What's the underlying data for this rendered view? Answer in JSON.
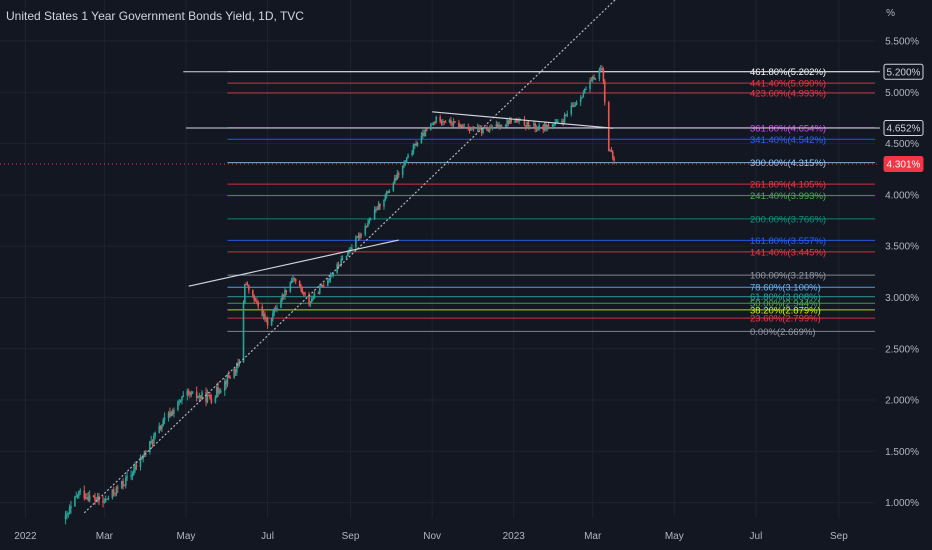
{
  "title": "United States 1 Year Government Bonds Yield, 1D, TVC",
  "colors": {
    "background": "#131722",
    "up": "#26a69a",
    "down": "#ef5350",
    "grid": "#1f2330",
    "axis_text": "#b2b5be"
  },
  "chart_data": {
    "type": "candlestick",
    "title": "United States 1 Year Government Bonds Yield, 1D, TVC",
    "y_unit_label": "%",
    "ylim": [
      0.85,
      5.9
    ],
    "y_ticks": [
      {
        "value": 1.0,
        "label": "1.000%"
      },
      {
        "value": 1.5,
        "label": "1.500%"
      },
      {
        "value": 2.0,
        "label": "2.000%"
      },
      {
        "value": 2.5,
        "label": "2.500%"
      },
      {
        "value": 3.0,
        "label": "3.000%"
      },
      {
        "value": 3.5,
        "label": "3.500%"
      },
      {
        "value": 4.0,
        "label": "4.000%"
      },
      {
        "value": 4.5,
        "label": "4.500%"
      },
      {
        "value": 5.0,
        "label": "5.000%"
      },
      {
        "value": 5.5,
        "label": "5.500%"
      }
    ],
    "x_ticks": [
      {
        "date": "2022-01-01",
        "label": "2022"
      },
      {
        "date": "2022-03-01",
        "label": "Mar"
      },
      {
        "date": "2022-05-01",
        "label": "May"
      },
      {
        "date": "2022-07-01",
        "label": "Jul"
      },
      {
        "date": "2022-09-01",
        "label": "Sep"
      },
      {
        "date": "2022-11-01",
        "label": "Nov"
      },
      {
        "date": "2023-01-01",
        "label": "2023"
      },
      {
        "date": "2023-03-01",
        "label": "Mar"
      },
      {
        "date": "2023-05-01",
        "label": "May"
      },
      {
        "date": "2023-07-01",
        "label": "Jul"
      },
      {
        "date": "2023-09-01",
        "label": "Sep"
      }
    ],
    "x_range": [
      "2021-12-13",
      "2023-09-28"
    ],
    "price_path": [
      [
        "2022-01-31",
        0.84
      ],
      [
        "2022-02-10",
        1.1
      ],
      [
        "2022-02-28",
        1.0
      ],
      [
        "2022-03-20",
        1.25
      ],
      [
        "2022-04-15",
        1.8
      ],
      [
        "2022-05-01",
        2.05
      ],
      [
        "2022-05-20",
        2.02
      ],
      [
        "2022-06-10",
        2.35
      ],
      [
        "2022-06-14",
        3.15
      ],
      [
        "2022-06-20",
        3.0
      ],
      [
        "2022-07-01",
        2.75
      ],
      [
        "2022-07-20",
        3.2
      ],
      [
        "2022-08-01",
        2.95
      ],
      [
        "2022-08-25",
        3.35
      ],
      [
        "2022-09-15",
        3.75
      ],
      [
        "2022-09-30",
        4.05
      ],
      [
        "2022-10-20",
        4.5
      ],
      [
        "2022-11-05",
        4.75
      ],
      [
        "2022-11-20",
        4.68
      ],
      [
        "2022-12-10",
        4.62
      ],
      [
        "2022-12-31",
        4.73
      ],
      [
        "2023-01-20",
        4.65
      ],
      [
        "2023-02-05",
        4.7
      ],
      [
        "2023-02-25",
        5.05
      ],
      [
        "2023-03-08",
        5.25
      ],
      [
        "2023-03-13",
        4.45
      ],
      [
        "2023-03-18",
        4.3
      ]
    ],
    "fib_levels": [
      {
        "label": "461.80%(5.202%)",
        "value": 5.202,
        "color": "#ffffff"
      },
      {
        "label": "441.40%(5.090%)",
        "value": 5.09,
        "color": "#f23645"
      },
      {
        "label": "423.60%(4.993%)",
        "value": 4.993,
        "color": "#f23645"
      },
      {
        "label": "361.80%(4.654%)",
        "value": 4.654,
        "color": "#e040fb"
      },
      {
        "label": "341.40%(4.542%)",
        "value": 4.542,
        "color": "#2962ff"
      },
      {
        "label": "300.00%(4.315%)",
        "value": 4.315,
        "color": "#90caf9"
      },
      {
        "label": "261.80%(4.105%)",
        "value": 4.105,
        "color": "#f23645"
      },
      {
        "label": "241.40%(3.993%)",
        "value": 3.993,
        "color": "#4caf50"
      },
      {
        "label": "200.00%(3.766%)",
        "value": 3.766,
        "color": "#089981"
      },
      {
        "label": "161.80%(3.557%)",
        "value": 3.557,
        "color": "#2962ff"
      },
      {
        "label": "141.40%(3.445%)",
        "value": 3.445,
        "color": "#f23645"
      },
      {
        "label": "100.00%(3.218%)",
        "value": 3.218,
        "color": "#9598a1"
      },
      {
        "label": "78.60%(3.100%)",
        "value": 3.1,
        "color": "#64b5f6"
      },
      {
        "label": "61.80%(3.008%)",
        "value": 3.008,
        "color": "#26a69a"
      },
      {
        "label": "50.00%(2.944%)",
        "value": 2.944,
        "color": "#4caf50"
      },
      {
        "label": "38.20%(2.879%)",
        "value": 2.879,
        "color": "#c6ff00"
      },
      {
        "label": "23.60%(2.799%)",
        "value": 2.799,
        "color": "#f23645"
      },
      {
        "label": "0.00%(2.669%)",
        "value": 2.669,
        "color": "#9598a1"
      }
    ],
    "fib_range": [
      "2022-06-01",
      "2022-10-29"
    ],
    "horizontal_lines": [
      {
        "value": 5.2,
        "from": "2022-04-29",
        "color": "#d1d4dc"
      },
      {
        "value": 4.652,
        "from": "2022-05-01",
        "color": "#d1d4dc"
      }
    ],
    "trend_lines": [
      {
        "x1": "2022-02-14",
        "y1": 0.9,
        "x2": "2023-03-24",
        "y2": 5.98,
        "dashed": true,
        "color": "#b2b5be"
      },
      {
        "x1": "2022-05-03",
        "y1": 3.11,
        "x2": "2022-10-07",
        "y2": 3.56,
        "dashed": false,
        "color": "#d1d4dc"
      },
      {
        "x1": "2022-11-01",
        "y1": 4.81,
        "x2": "2023-03-16",
        "y2": 4.65,
        "dashed": false,
        "color": "#d1d4dc"
      }
    ],
    "price_tags": [
      {
        "label": "5.200%",
        "value": 5.2,
        "bg": "#131722",
        "fg": "#d1d4dc",
        "border": "#d1d4dc"
      },
      {
        "label": "4.652%",
        "value": 4.652,
        "bg": "#131722",
        "fg": "#d1d4dc",
        "border": "#d1d4dc"
      },
      {
        "label": "4.301%",
        "value": 4.301,
        "bg": "#f23645",
        "fg": "#ffffff",
        "border": "#f23645"
      }
    ],
    "last_price": 4.301
  }
}
